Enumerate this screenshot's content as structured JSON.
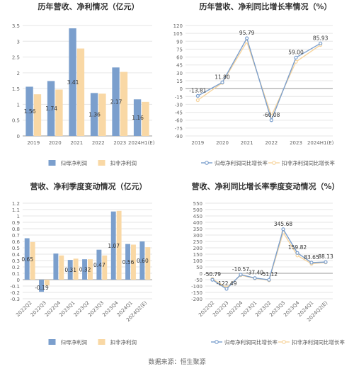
{
  "source": "数据来源：恒生聚源",
  "colors": {
    "blue": "#7b9fcd",
    "orange": "#f9d8a5",
    "line_blue": "#7b9fcd",
    "line_orange": "#f7d59f",
    "axis": "#999999",
    "grid": "#e6e6e6",
    "text": "#555555"
  },
  "chart_data": [
    {
      "type": "bar",
      "title": "历年营收、净利情况（亿元）",
      "categories": [
        "2019",
        "2020",
        "2021",
        "2022",
        "2023",
        "2024H1(E)"
      ],
      "series": [
        {
          "name": "归母净利润",
          "values": [
            1.56,
            1.74,
            3.41,
            1.36,
            2.17,
            1.16
          ],
          "labels": [
            "1.56",
            "1.74",
            "3.41",
            "1.36",
            "2.17",
            "1.16"
          ]
        },
        {
          "name": "扣非净利润",
          "values": [
            1.32,
            1.47,
            2.77,
            1.34,
            2.03,
            1.08
          ]
        }
      ],
      "ylim": [
        0,
        3.5
      ],
      "yticks": [
        "0",
        "0.5",
        "1",
        "1.5",
        "2",
        "2.5",
        "3",
        "3.5"
      ],
      "grid": true,
      "legend": "bottom"
    },
    {
      "type": "line",
      "title": "历年营收、净利同比增长率情况（%）",
      "categories": [
        "2019",
        "2020",
        "2021",
        "2022",
        "2023",
        "2024H1(E)"
      ],
      "series": [
        {
          "name": "归母净利润同比增长率",
          "values": [
            -13.81,
            11.8,
            95.79,
            -60.08,
            59.0,
            85.93
          ],
          "labels": [
            "-13.81",
            "11.80",
            "95.79",
            "-60.08",
            "59.00",
            "85.93"
          ]
        },
        {
          "name": "扣非净利润同比增长率",
          "values": [
            -22.0,
            11.0,
            89.0,
            -52.0,
            51.0,
            83.0
          ]
        }
      ],
      "ylim": [
        -90,
        120
      ],
      "yticks": [
        "-90",
        "-75",
        "-60",
        "-45",
        "-30",
        "-15",
        "0",
        "15",
        "30",
        "45",
        "60",
        "75",
        "90",
        "105",
        "120"
      ],
      "grid": true,
      "legend": "bottom"
    },
    {
      "type": "bar",
      "title": "营收、净利季度变动情况（亿元）",
      "categories": [
        "2022Q2",
        "2022Q3",
        "2022Q4",
        "2023Q1",
        "2023Q2",
        "2023Q3",
        "2023Q4",
        "2024Q1",
        "2024Q2(E)"
      ],
      "series": [
        {
          "name": "归母净利润",
          "values": [
            0.65,
            -0.19,
            0.41,
            0.31,
            0.32,
            0.47,
            1.07,
            0.56,
            0.6
          ],
          "labels": [
            "0.65",
            "-0.19",
            "",
            "0.31",
            "0.32",
            "0.47",
            "1.07",
            "0.56",
            "0.60"
          ]
        },
        {
          "name": "扣非净利润",
          "values": [
            0.59,
            -0.09,
            0.38,
            0.33,
            0.32,
            0.38,
            1.08,
            0.55,
            0.51
          ]
        }
      ],
      "ylim": [
        -0.3,
        1.2
      ],
      "yticks": [
        "-0.3",
        "-0.2",
        "-0.1",
        "0",
        "0.1",
        "0.2",
        "0.3",
        "0.4",
        "0.5",
        "0.6",
        "0.7",
        "0.8",
        "0.9",
        "1",
        "1.1",
        "1.2"
      ],
      "grid": true,
      "legend": "bottom"
    },
    {
      "type": "line",
      "title": "营收、净利同比增长率季度变动情况（%）",
      "categories": [
        "2022Q2",
        "2022Q3",
        "2022Q4",
        "2023Q1",
        "2023Q2",
        "2023Q3",
        "2023Q4",
        "2024Q1",
        "2024Q2(E)"
      ],
      "series": [
        {
          "name": "归母净利润同比增长率",
          "values": [
            -50.79,
            -122.49,
            -10.57,
            -37.4,
            -51.12,
            345.68,
            159.82,
            83.65,
            88.13
          ],
          "labels": [
            "-50.79",
            "-122.49",
            "-10.57",
            "-37.40",
            "-51.12",
            "345.68",
            "159.82",
            "83.65",
            "88.13"
          ]
        },
        {
          "name": "扣非净利润同比增长率",
          "values": [
            -45,
            -112,
            -15,
            -40,
            -55,
            320,
            140,
            75,
            85
          ]
        }
      ],
      "ylim": [
        -200,
        550
      ],
      "yticks": [
        "-200",
        "-150",
        "-100",
        "-50",
        "0",
        "50",
        "100",
        "150",
        "200",
        "250",
        "300",
        "350",
        "400",
        "450",
        "500",
        "550"
      ],
      "grid": true,
      "legend": "bottom"
    }
  ]
}
